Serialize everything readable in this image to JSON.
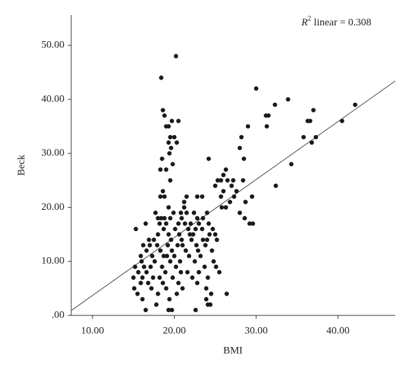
{
  "chart_data": {
    "type": "scatter",
    "x_label": "BMI",
    "y_label": "Beck",
    "annotation": {
      "base": "R",
      "sup": "2",
      "text": "linear = 0.308"
    },
    "color": "#1a1a1a",
    "xlim": [
      7.4,
      47
    ],
    "ylim": [
      0,
      55.6
    ],
    "xticks": [
      {
        "value": 10,
        "label": "10.00"
      },
      {
        "value": 20,
        "label": "20.00"
      },
      {
        "value": 30,
        "label": "30.00"
      },
      {
        "value": 40,
        "label": "40.00"
      }
    ],
    "yticks": [
      {
        "value": 0,
        "label": ".00"
      },
      {
        "value": 10,
        "label": "10.00"
      },
      {
        "value": 20,
        "label": "20.00"
      },
      {
        "value": 30,
        "label": "30.00"
      },
      {
        "value": 40,
        "label": "40.00"
      },
      {
        "value": 50,
        "label": "50.00"
      }
    ],
    "fit": {
      "x": [
        7.4,
        47
      ],
      "y": [
        0.9,
        43.4
      ]
    },
    "x": [
      18.4,
      20.2,
      18.6,
      18.8,
      19,
      19.3,
      19.5,
      19.3,
      19.6,
      20,
      20.3,
      20.5,
      19.7,
      18.5,
      19,
      18.3,
      19.4,
      19.8,
      19.5,
      18.6,
      18.3,
      18.8,
      24.2,
      26.3,
      26,
      25.7,
      25.3,
      26.5,
      25,
      26,
      25.7,
      27.2,
      27,
      27.6,
      28.2,
      28,
      28.5,
      29,
      30,
      32.3,
      31.2,
      31.5,
      31.3,
      33.9,
      36.3,
      36.6,
      35.8,
      37,
      37.3,
      36.8,
      34.3,
      32.4,
      29.5,
      28,
      28.6,
      29.2,
      29.6,
      26.3,
      25.8,
      26.8,
      40.5,
      42.1,
      27.3,
      28.7,
      28.4,
      22.8,
      23.4,
      21.5,
      21.2,
      19.3,
      21.2,
      17.7,
      19.9,
      20.8,
      21.5,
      22.4,
      24.0,
      18.0,
      18.4,
      18.8,
      19.5,
      20.9,
      22.8,
      23.5,
      16.5,
      18.2,
      19.0,
      20.5,
      21.3,
      22.0,
      23.0,
      24.2,
      15.3,
      18.7,
      20.1,
      21.7,
      22.6,
      23.4,
      24.7,
      18.0,
      19.3,
      20.6,
      21.9,
      22.3,
      24.3,
      25.0,
      16.9,
      17.5,
      19.6,
      20.9,
      22.1,
      23.5,
      24.0,
      25.2,
      16.2,
      17.0,
      17.9,
      19.2,
      20.4,
      21.0,
      22.7,
      23.8,
      16.6,
      18.3,
      19.7,
      21.4,
      22.9,
      24.6,
      15.9,
      17.3,
      18.7,
      19.1,
      20.0,
      21.8,
      23.2,
      16.0,
      17.6,
      19.5,
      20.7,
      22.5,
      24.8,
      15.2,
      16.3,
      17.1,
      18.5,
      20.2,
      23.7,
      25.1,
      15.6,
      16.6,
      18.9,
      20.8,
      21.6,
      23.0,
      25.5,
      15.0,
      16.1,
      17.4,
      18.2,
      19.8,
      22.2,
      24.1,
      15.9,
      16.8,
      18.6,
      20.5,
      22.8,
      15.1,
      17.2,
      19.0,
      21.0,
      23.9,
      15.5,
      18.0,
      20.3,
      24.5,
      26.4,
      16.1,
      19.4,
      23.9,
      17.8,
      24.1,
      24.4,
      16.5,
      19.3,
      19.7,
      22.6
    ],
    "values": [
      44,
      48,
      38,
      37,
      35,
      35,
      33,
      32,
      31,
      33,
      32,
      36,
      36,
      29,
      27,
      27,
      30,
      28,
      25,
      23,
      22,
      22,
      29,
      27,
      26,
      25,
      25,
      25,
      24,
      23,
      22,
      25,
      24,
      23,
      33,
      31,
      29,
      35,
      42,
      39,
      37,
      37,
      35,
      40,
      36,
      36,
      33,
      38,
      33,
      32,
      28,
      24,
      22,
      19,
      18,
      17,
      17,
      20,
      20,
      21,
      36,
      39,
      22,
      21,
      25,
      22,
      22,
      22,
      21,
      20,
      20,
      19,
      19,
      19,
      19,
      19,
      19,
      18,
      18,
      18,
      18,
      18,
      18,
      18,
      17,
      17,
      17,
      17,
      17,
      17,
      17,
      17,
      16,
      16,
      16,
      16,
      16,
      16,
      16,
      15,
      15,
      15,
      15,
      15,
      15,
      15,
      14,
      14,
      14,
      14,
      14,
      14,
      14,
      14,
      13,
      13,
      13,
      13,
      13,
      13,
      13,
      13,
      12,
      12,
      12,
      12,
      12,
      12,
      11,
      11,
      11,
      11,
      11,
      11,
      11,
      10,
      10,
      10,
      10,
      10,
      10,
      9,
      9,
      9,
      9,
      9,
      9,
      9,
      8,
      8,
      8,
      8,
      8,
      8,
      8,
      7,
      7,
      7,
      7,
      7,
      7,
      7,
      6,
      6,
      6,
      6,
      6,
      5,
      5,
      5,
      5,
      5,
      4,
      4,
      4,
      4,
      4,
      3,
      3,
      3,
      2,
      2,
      2,
      1,
      1,
      1,
      1
    ]
  }
}
